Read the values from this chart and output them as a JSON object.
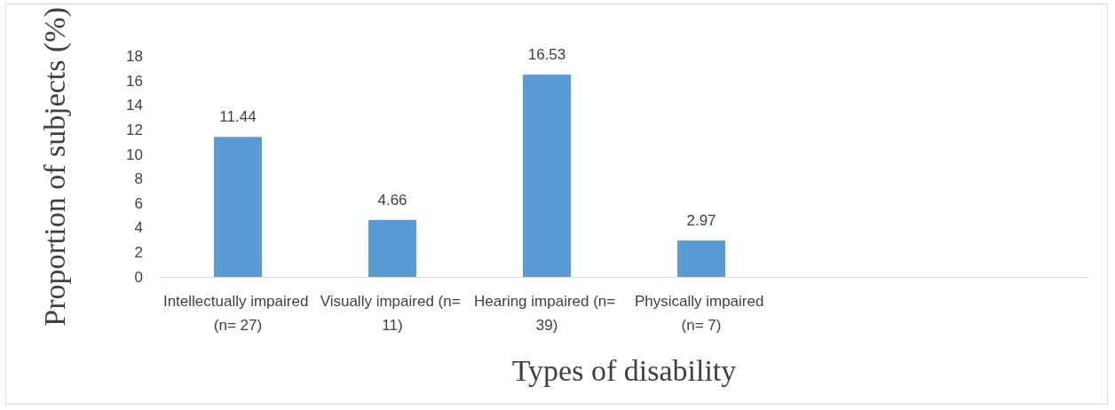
{
  "chart_data": {
    "type": "bar",
    "xlabel": "Types of disability",
    "ylabel": "Proportion of subjects (%)",
    "categories": [
      "Intellectually impaired (n= 27)",
      "Visually impaired (n= 11)",
      "Hearing impaired (n= 39)",
      "Physically impaired (n= 7)",
      null,
      null
    ],
    "values": [
      11.44,
      4.66,
      16.53,
      2.97,
      null,
      null
    ],
    "color": "#5b9bd5",
    "ylim": [
      0,
      18
    ],
    "yticks": [
      0,
      2,
      4,
      6,
      8,
      10,
      12,
      14,
      16,
      18
    ],
    "grid": false,
    "data_labels": true
  }
}
